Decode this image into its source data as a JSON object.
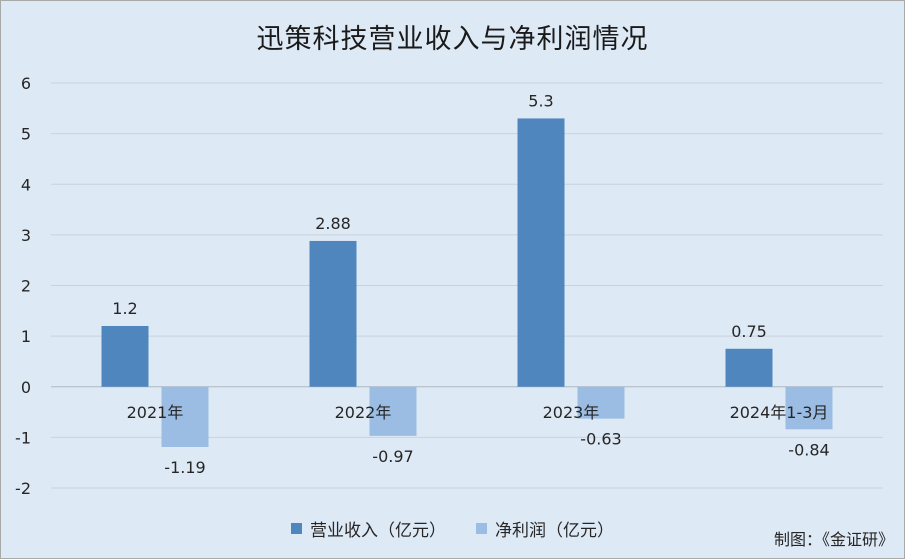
{
  "chart_data": {
    "type": "bar",
    "title": "迅策科技营业收入与净利润情况",
    "categories": [
      "2021年",
      "2022年",
      "2023年",
      "2024年1-3月"
    ],
    "series": [
      {
        "name": "营业收入（亿元）",
        "values": [
          1.2,
          2.88,
          5.3,
          0.75
        ],
        "color": "#4f86bd"
      },
      {
        "name": "净利润（亿元）",
        "values": [
          -1.19,
          -0.97,
          -0.63,
          -0.84
        ],
        "color": "#9bbde3"
      }
    ],
    "ylim": [
      -2,
      6
    ],
    "yticks": [
      -2,
      -1,
      0,
      1,
      2,
      3,
      4,
      5,
      6
    ],
    "grid": true,
    "legend": "bottom",
    "xlabel": "",
    "ylabel": ""
  },
  "source_note": "制图：《金证研》"
}
